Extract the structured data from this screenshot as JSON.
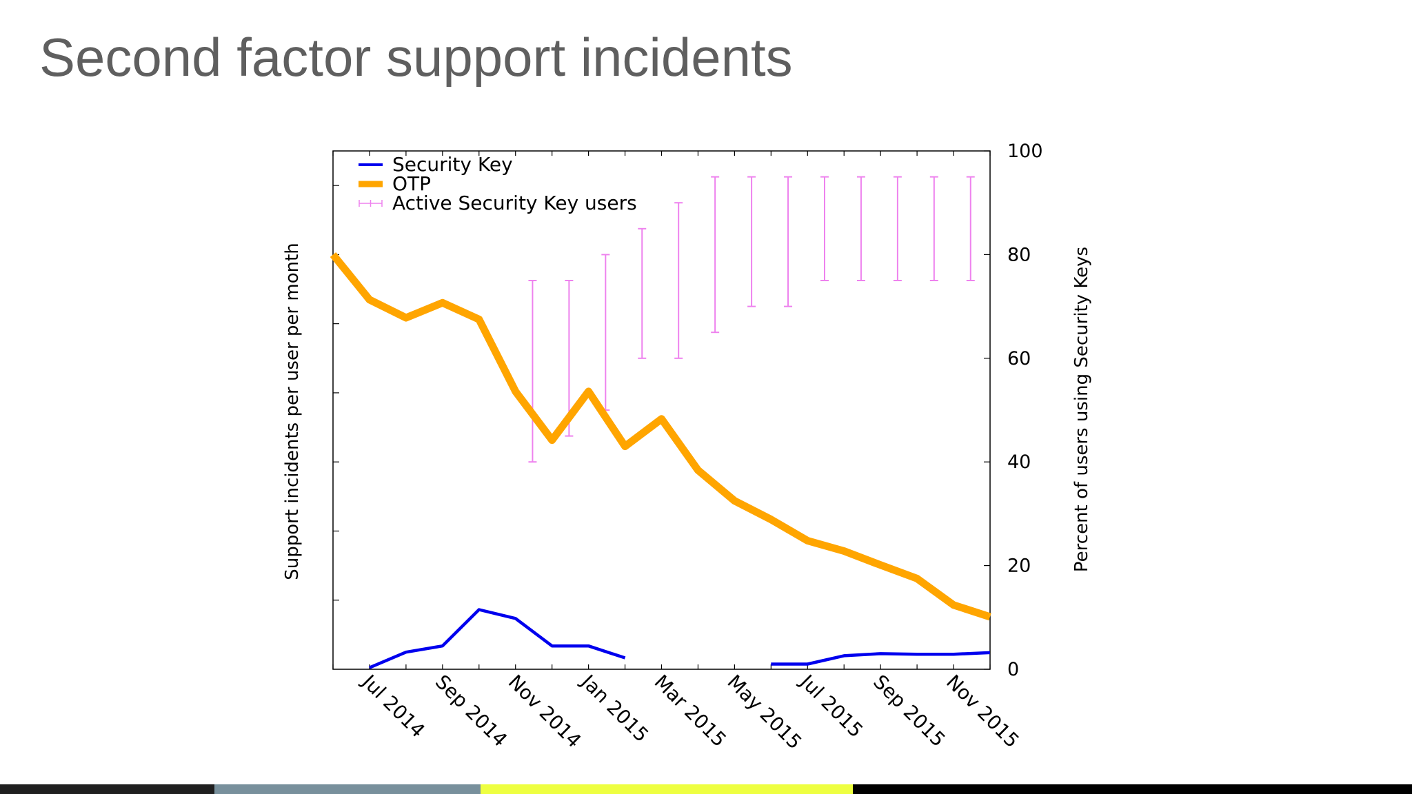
{
  "slide": {
    "title": "Second factor support incidents"
  },
  "chart_data": {
    "type": "line",
    "x_labels": [
      "Jul 2014",
      "Sep 2014",
      "Nov 2014",
      "Jan 2015",
      "Mar 2015",
      "May 2015",
      "Jul 2015",
      "Sep 2015",
      "Nov 2015"
    ],
    "y_left_label": "Support incidents per user per month",
    "y_right_label": "Percent of users using Security Keys",
    "y_right_ticks": [
      0,
      20,
      40,
      60,
      80,
      100
    ],
    "y_right_range": [
      0,
      100
    ],
    "x_range": [
      "2014-06",
      "2015-12"
    ],
    "legend_position": "top-left",
    "series": [
      {
        "name": "Security Key",
        "color": "#0000ee",
        "segments": [
          [
            {
              "x": "2014-07",
              "y": 0.3
            },
            {
              "x": "2014-08",
              "y": 3.3
            },
            {
              "x": "2014-09",
              "y": 4.5
            },
            {
              "x": "2014-10",
              "y": 11.5
            },
            {
              "x": "2014-11",
              "y": 9.8
            },
            {
              "x": "2014-12",
              "y": 4.5
            },
            {
              "x": "2015-01",
              "y": 4.5
            },
            {
              "x": "2015-02",
              "y": 2.2
            }
          ],
          [
            {
              "x": "2015-06",
              "y": 1.0
            },
            {
              "x": "2015-07",
              "y": 1.0
            },
            {
              "x": "2015-08",
              "y": 2.6
            },
            {
              "x": "2015-09",
              "y": 3.0
            },
            {
              "x": "2015-10",
              "y": 2.9
            },
            {
              "x": "2015-11",
              "y": 2.9
            },
            {
              "x": "2015-12",
              "y": 3.2
            }
          ]
        ]
      },
      {
        "name": "OTP",
        "color": "#ffa500",
        "segments": [
          [
            {
              "x": "2014-06",
              "y": 80
            },
            {
              "x": "2014-07",
              "y": 71.3
            },
            {
              "x": "2014-08",
              "y": 67.8
            },
            {
              "x": "2014-09",
              "y": 70.7
            },
            {
              "x": "2014-10",
              "y": 67.5
            },
            {
              "x": "2014-11",
              "y": 53.6
            },
            {
              "x": "2014-12",
              "y": 44.2
            },
            {
              "x": "2015-01",
              "y": 53.6
            },
            {
              "x": "2015-02",
              "y": 43.0
            },
            {
              "x": "2015-03",
              "y": 48.3
            },
            {
              "x": "2015-04",
              "y": 38.4
            },
            {
              "x": "2015-05",
              "y": 32.5
            },
            {
              "x": "2015-06",
              "y": 28.9
            },
            {
              "x": "2015-07",
              "y": 24.8
            },
            {
              "x": "2015-08",
              "y": 22.8
            },
            {
              "x": "2015-09",
              "y": 20.1
            },
            {
              "x": "2015-10",
              "y": 17.5
            },
            {
              "x": "2015-11",
              "y": 12.4
            },
            {
              "x": "2015-12",
              "y": 10.1
            }
          ]
        ]
      }
    ],
    "error_bars": {
      "name": "Active Security Key users",
      "color": "#ee82ee",
      "points": [
        {
          "x": "2014-11-15",
          "low": 40,
          "high": 75
        },
        {
          "x": "2014-12-15",
          "low": 45,
          "high": 75
        },
        {
          "x": "2015-01-15",
          "low": 50,
          "high": 80
        },
        {
          "x": "2015-02-15",
          "low": 60,
          "high": 85
        },
        {
          "x": "2015-03-15",
          "low": 60,
          "high": 90
        },
        {
          "x": "2015-04-15",
          "low": 65,
          "high": 95
        },
        {
          "x": "2015-05-15",
          "low": 70,
          "high": 95
        },
        {
          "x": "2015-06-15",
          "low": 70,
          "high": 95
        },
        {
          "x": "2015-07-15",
          "low": 75,
          "high": 95
        },
        {
          "x": "2015-08-15",
          "low": 75,
          "high": 95
        },
        {
          "x": "2015-09-15",
          "low": 75,
          "high": 95
        },
        {
          "x": "2015-10-15",
          "low": 75,
          "high": 95
        },
        {
          "x": "2015-11-15",
          "low": 75,
          "high": 95
        }
      ]
    }
  },
  "footer": {
    "colors": [
      "#1f1f1f",
      "#78909c",
      "#eeff41",
      "#000000"
    ]
  }
}
